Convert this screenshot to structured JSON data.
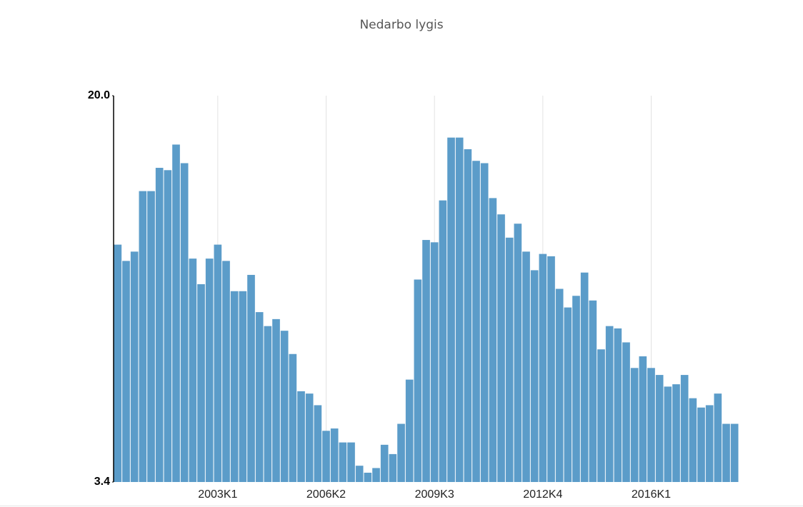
{
  "chart_data": {
    "type": "bar",
    "title": "Nedarbo lygis",
    "color": "#5b9cc9",
    "categories": [
      null,
      null,
      null,
      null,
      null,
      null,
      null,
      null,
      null,
      null,
      null,
      null,
      "2003K1",
      null,
      null,
      null,
      null,
      null,
      null,
      null,
      null,
      null,
      null,
      null,
      null,
      "2006K2",
      null,
      null,
      null,
      null,
      null,
      null,
      null,
      null,
      null,
      null,
      null,
      null,
      "2009K3",
      null,
      null,
      null,
      null,
      null,
      null,
      null,
      null,
      null,
      null,
      null,
      null,
      "2012K4",
      null,
      null,
      null,
      null,
      null,
      null,
      null,
      null,
      null,
      null,
      null,
      null,
      "2016K1",
      null,
      null,
      null,
      null,
      null,
      null,
      null,
      null,
      null,
      null
    ],
    "values": [
      13.6,
      12.9,
      13.3,
      15.9,
      15.9,
      16.9,
      16.8,
      17.9,
      17.1,
      13.0,
      11.9,
      13.0,
      13.6,
      12.9,
      11.6,
      11.6,
      12.3,
      10.7,
      10.1,
      10.4,
      9.9,
      8.9,
      7.3,
      7.2,
      6.7,
      5.6,
      5.7,
      5.1,
      5.1,
      4.1,
      3.8,
      4.0,
      5.0,
      4.6,
      5.9,
      7.8,
      12.1,
      13.8,
      13.7,
      15.5,
      18.2,
      18.2,
      17.7,
      17.2,
      17.1,
      15.6,
      14.9,
      13.9,
      14.5,
      13.3,
      12.5,
      13.2,
      13.1,
      11.7,
      10.9,
      11.4,
      12.4,
      11.2,
      9.1,
      10.1,
      10.0,
      9.4,
      8.3,
      8.8,
      8.3,
      8.0,
      7.5,
      7.6,
      8.0,
      7.0,
      6.6,
      6.7,
      7.2,
      5.9,
      5.9
    ],
    "ylim": [
      3.4,
      20
    ],
    "yticks": [
      3.4,
      {
        "value": 20,
        "label": "20.0"
      }
    ],
    "grid": true
  }
}
